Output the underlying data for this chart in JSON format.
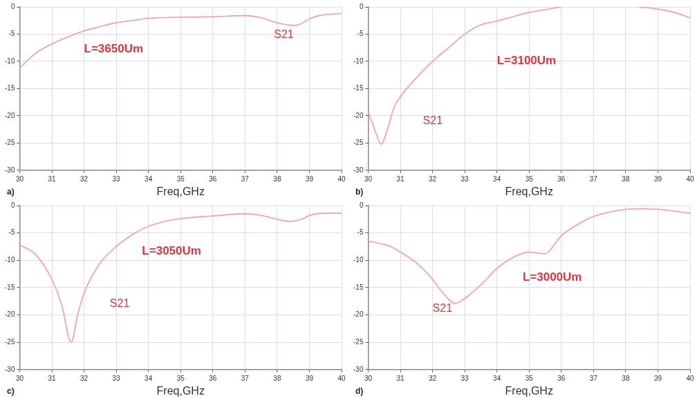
{
  "chart_data": [
    {
      "type": "line",
      "xlabel": "Freq,GHz",
      "annotations": [
        "a)",
        "L=3650Um"
      ],
      "xlim": [
        30,
        40
      ],
      "xticks": [
        30,
        31,
        32,
        33,
        34,
        35,
        36,
        37,
        38,
        39,
        40
      ],
      "ylim": [
        -30,
        0
      ],
      "yticks": [
        -30,
        -25,
        -20,
        -15,
        -10,
        -5,
        0
      ],
      "grid": true,
      "legend": false,
      "series": [
        {
          "name": "S21",
          "color": "#ff9a9a",
          "x": [
            30,
            30.5,
            31,
            31.5,
            32,
            32.5,
            33,
            33.5,
            34,
            35,
            36,
            37,
            37.5,
            38,
            38.5,
            38.7,
            39,
            39.3,
            40
          ],
          "values": [
            -11.2,
            -8.5,
            -6.8,
            -5.5,
            -4.4,
            -3.6,
            -2.9,
            -2.5,
            -2.1,
            -1.9,
            -1.8,
            -1.6,
            -2.0,
            -2.9,
            -3.4,
            -3.2,
            -2.2,
            -1.6,
            -1.2
          ]
        }
      ]
    },
    {
      "type": "line",
      "xlabel": "Freq,GHz",
      "annotations": [
        "b)",
        "L=3100Um"
      ],
      "xlim": [
        30,
        40
      ],
      "xticks": [
        30,
        31,
        32,
        33,
        34,
        35,
        36,
        37,
        38,
        39,
        40
      ],
      "ylim": [
        -30,
        0
      ],
      "yticks": [
        -30,
        -25,
        -20,
        -15,
        -10,
        -5,
        0
      ],
      "grid": true,
      "legend": false,
      "series": [
        {
          "name": "S21",
          "color": "#ff9a9a",
          "x": [
            30,
            30.2,
            30.4,
            30.6,
            30.8,
            31,
            31.5,
            32,
            32.5,
            33,
            33.5,
            34,
            34.5,
            35,
            35.5,
            36,
            37,
            38.4,
            39,
            39.5,
            40
          ],
          "values": [
            -19.3,
            -22.5,
            -25.2,
            -22.5,
            -18.5,
            -16.5,
            -13,
            -10,
            -7.5,
            -5,
            -3.3,
            -2.6,
            -1.8,
            -1,
            -0.5,
            0,
            null,
            0,
            -0.4,
            -1,
            -2
          ]
        }
      ]
    },
    {
      "type": "line",
      "xlabel": "Freq,GHz",
      "annotations": [
        "c)",
        "L=3050Um"
      ],
      "xlim": [
        30,
        40
      ],
      "xticks": [
        30,
        31,
        32,
        33,
        34,
        35,
        36,
        37,
        38,
        39,
        40
      ],
      "ylim": [
        -30,
        0
      ],
      "yticks": [
        -30,
        -25,
        -20,
        -15,
        -10,
        -5,
        0
      ],
      "grid": true,
      "legend": false,
      "series": [
        {
          "name": "S21",
          "color": "#ff9a9a",
          "x": [
            30,
            30.5,
            31,
            31.3,
            31.6,
            31.8,
            32,
            32.5,
            33,
            33.5,
            34,
            34.5,
            35,
            36,
            37,
            37.5,
            38,
            38.4,
            38.8,
            39,
            39.5,
            40
          ],
          "values": [
            -7.2,
            -9,
            -13.5,
            -18,
            -25,
            -20,
            -16,
            -10.5,
            -7.5,
            -5.3,
            -3.8,
            -2.9,
            -2.4,
            -1.9,
            -1.5,
            -1.8,
            -2.5,
            -2.9,
            -2.4,
            -1.8,
            -1.4,
            -1.4
          ]
        }
      ]
    },
    {
      "type": "line",
      "xlabel": "Freq,GHz",
      "annotations": [
        "d)",
        "L=3000Um"
      ],
      "xlim": [
        30,
        40
      ],
      "xticks": [
        30,
        31,
        32,
        33,
        34,
        35,
        36,
        37,
        38,
        39,
        40
      ],
      "ylim": [
        -30,
        0
      ],
      "yticks": [
        -30,
        -25,
        -20,
        -15,
        -10,
        -5,
        0
      ],
      "grid": true,
      "legend": false,
      "series": [
        {
          "name": "S21",
          "color": "#ff9a9a",
          "x": [
            30,
            30.7,
            31,
            31.5,
            32,
            32.3,
            32.7,
            33,
            33.5,
            34,
            34.5,
            35,
            35.3,
            35.5,
            35.8,
            36,
            36.5,
            37,
            37.5,
            38,
            38.5,
            39,
            39.5,
            40
          ],
          "values": [
            -6.5,
            -7.5,
            -8.5,
            -10.5,
            -13.5,
            -15.8,
            -17.9,
            -17,
            -14.5,
            -11.5,
            -9.5,
            -8.5,
            -8.7,
            -8.8,
            -7,
            -5.5,
            -3.5,
            -2,
            -1.2,
            -0.7,
            -0.6,
            -0.7,
            -1,
            -1.4
          ]
        }
      ]
    }
  ]
}
